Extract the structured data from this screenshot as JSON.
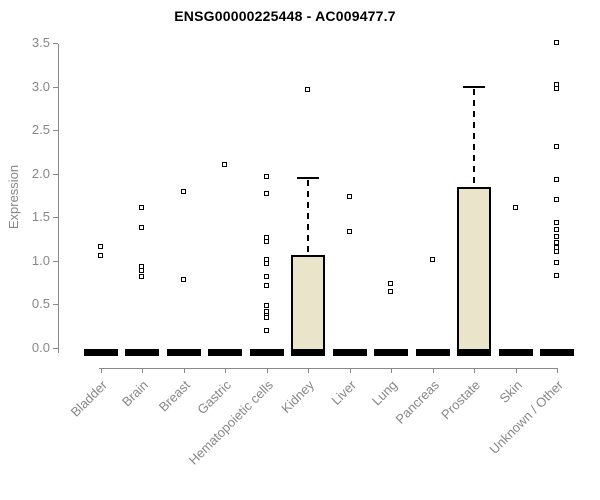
{
  "title": "ENSG00000225448 - AC009477.7",
  "colors": {
    "box_fill": "#EAE5CA",
    "box_border": "#000000",
    "median": "#000000",
    "whisker": "#000000",
    "outlier_border": "#000000",
    "outlier_fill": "#FFFFFF",
    "axis": "#8A8A8A",
    "tick_labels": "#878787",
    "title_color": "#000000",
    "background": "#FFFFFF"
  },
  "chart_data": {
    "type": "boxplot",
    "title": "ENSG00000225448 - AC009477.7",
    "xlabel": "",
    "ylabel": "Expression",
    "ylim": [
      0,
      3.5
    ],
    "yticks": [
      0,
      0.5,
      1,
      1.5,
      2,
      2.5,
      3,
      3.5
    ],
    "grid": false,
    "legend": "none",
    "categories": [
      "Bladder",
      "Brain",
      "Breast",
      "Gastric",
      "Hematopoietic cells",
      "Kidney",
      "Liver",
      "Lung",
      "Pancreas",
      "Prostate",
      "Skin",
      "Unknown / Other"
    ],
    "boxes": [
      {
        "category": "Bladder",
        "median": 0,
        "q1": 0,
        "q3": 0,
        "whisker_low": 0,
        "whisker_high": 0,
        "outliers": [
          1.16,
          1.06
        ]
      },
      {
        "category": "Brain",
        "median": 0,
        "q1": 0,
        "q3": 0,
        "whisker_low": 0,
        "whisker_high": 0,
        "outliers": [
          1.61,
          1.38,
          0.93,
          0.88,
          0.81
        ]
      },
      {
        "category": "Breast",
        "median": 0,
        "q1": 0,
        "q3": 0,
        "whisker_low": 0,
        "whisker_high": 0,
        "outliers": [
          1.79,
          0.78
        ]
      },
      {
        "category": "Gastric",
        "median": 0,
        "q1": 0,
        "q3": 0,
        "whisker_low": 0,
        "whisker_high": 0,
        "outliers": [
          2.1
        ]
      },
      {
        "category": "Hematopoietic cells",
        "median": 0,
        "q1": 0,
        "q3": 0,
        "whisker_low": 0,
        "whisker_high": 0,
        "outliers": [
          1.96,
          1.77,
          1.26,
          1.22,
          1.01,
          0.97,
          0.81,
          0.71,
          0.48,
          0.41,
          0.37,
          0.34,
          0.19
        ]
      },
      {
        "category": "Kidney",
        "median": 0,
        "q1": 0,
        "q3": 1.07,
        "whisker_low": 0,
        "whisker_high": 1.95,
        "outliers": [
          2.96
        ]
      },
      {
        "category": "Liver",
        "median": 0,
        "q1": 0,
        "q3": 0,
        "whisker_low": 0,
        "whisker_high": 0,
        "outliers": [
          1.73,
          1.33
        ]
      },
      {
        "category": "Lung",
        "median": 0,
        "q1": 0,
        "q3": 0,
        "whisker_low": 0,
        "whisker_high": 0,
        "outliers": [
          0.73,
          0.64
        ]
      },
      {
        "category": "Pancreas",
        "median": 0,
        "q1": 0,
        "q3": 0,
        "whisker_low": 0,
        "whisker_high": 0,
        "outliers": [
          1.01
        ]
      },
      {
        "category": "Prostate",
        "median": 0,
        "q1": 0,
        "q3": 1.85,
        "whisker_low": 0,
        "whisker_high": 3.0,
        "outliers": []
      },
      {
        "category": "Skin",
        "median": 0,
        "q1": 0,
        "q3": 0,
        "whisker_low": 0,
        "whisker_high": 0,
        "outliers": [
          1.61
        ]
      },
      {
        "category": "Unknown / Other",
        "median": 0,
        "q1": 0,
        "q3": 0,
        "whisker_low": 0,
        "whisker_high": 0,
        "outliers": [
          3.5,
          3.02,
          2.97,
          2.31,
          1.93,
          1.7,
          1.43,
          1.36,
          1.27,
          1.21,
          1.15,
          1.1,
          0.98,
          0.83
        ]
      }
    ]
  }
}
